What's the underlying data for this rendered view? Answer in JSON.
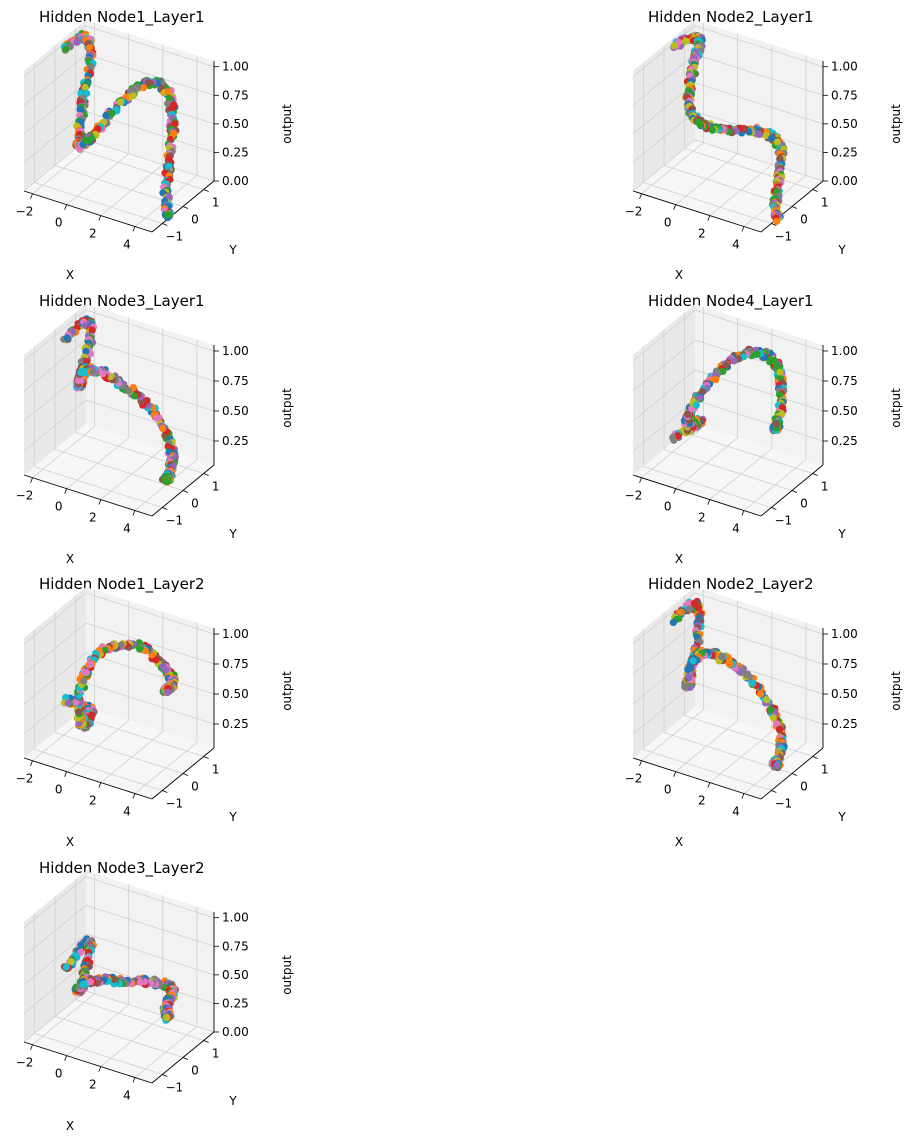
{
  "colors": {
    "pane_left": "#e9e9e9",
    "pane_right": "#f2f2f2",
    "pane_floor": "#f7f7f7",
    "grid": "#cfcfcf",
    "point_palette": [
      "#1f77b4",
      "#ff7f0e",
      "#2ca02c",
      "#d62728",
      "#9467bd",
      "#8c564b",
      "#e377c2",
      "#7f7f7f",
      "#bcbd22",
      "#17becf"
    ]
  },
  "chart_data": [
    {
      "type": "scatter",
      "projection": "3d",
      "title": "Hidden Node1_Layer1",
      "xlabel": "X",
      "ylabel": "Y",
      "zlabel": "output",
      "xticks": [
        "−2",
        "0",
        "2",
        "4"
      ],
      "yticks": [
        "−1",
        "0",
        "1"
      ],
      "zticks": [
        "0.00",
        "0.25",
        "0.50",
        "0.75",
        "1.00"
      ],
      "xlim": [
        -2.5,
        5
      ],
      "ylim": [
        -1.5,
        1.5
      ],
      "zlim": [
        0,
        1.05
      ],
      "points": [
        [
          -2.5,
          0.5,
          0.95
        ],
        [
          -2.0,
          1.0,
          1.0
        ],
        [
          -1.5,
          0.9,
          0.9
        ],
        [
          -1.0,
          0.2,
          0.7
        ],
        [
          -0.5,
          -0.4,
          0.55
        ],
        [
          0.0,
          -0.9,
          0.45
        ],
        [
          0.5,
          -1.1,
          0.5
        ],
        [
          1.0,
          -0.9,
          0.6
        ],
        [
          1.5,
          -0.3,
          0.75
        ],
        [
          2.0,
          0.5,
          0.85
        ],
        [
          2.5,
          1.0,
          0.8
        ],
        [
          3.0,
          1.1,
          0.65
        ],
        [
          3.5,
          0.7,
          0.45
        ],
        [
          4.0,
          0.1,
          0.25
        ],
        [
          4.5,
          -0.4,
          0.1
        ],
        [
          5.0,
          -0.7,
          0.02
        ]
      ]
    },
    {
      "type": "scatter",
      "projection": "3d",
      "title": "Hidden Node2_Layer1",
      "xlabel": "X",
      "ylabel": "Y",
      "zlabel": "output",
      "xticks": [
        "−2",
        "0",
        "2",
        "4"
      ],
      "yticks": [
        "−1",
        "0",
        "1"
      ],
      "zticks": [
        "0.00",
        "0.25",
        "0.50",
        "0.75",
        "1.00"
      ],
      "xlim": [
        -2.5,
        5
      ],
      "ylim": [
        -1.5,
        1.5
      ],
      "zlim": [
        0,
        1.05
      ],
      "points": [
        [
          -2.5,
          0.5,
          0.98
        ],
        [
          -2.0,
          1.0,
          1.0
        ],
        [
          -1.5,
          0.9,
          0.98
        ],
        [
          -1.0,
          0.2,
          0.95
        ],
        [
          -0.5,
          -0.4,
          0.85
        ],
        [
          0.0,
          -0.9,
          0.8
        ],
        [
          0.5,
          -1.1,
          0.75
        ],
        [
          1.0,
          -0.9,
          0.65
        ],
        [
          1.5,
          -0.3,
          0.55
        ],
        [
          2.0,
          0.5,
          0.45
        ],
        [
          2.5,
          1.0,
          0.35
        ],
        [
          3.0,
          1.1,
          0.25
        ],
        [
          3.5,
          0.7,
          0.15
        ],
        [
          4.0,
          0.1,
          0.07
        ],
        [
          4.5,
          -0.4,
          0.02
        ],
        [
          5.0,
          -0.7,
          0.0
        ]
      ]
    },
    {
      "type": "scatter",
      "projection": "3d",
      "title": "Hidden Node3_Layer1",
      "xlabel": "X",
      "ylabel": "Y",
      "zlabel": "output",
      "xticks": [
        "−2",
        "0",
        "2",
        "4"
      ],
      "yticks": [
        "−1",
        "0",
        "1"
      ],
      "zticks": [
        "0.25",
        "0.50",
        "0.75",
        "1.00"
      ],
      "xlim": [
        -2.5,
        5
      ],
      "ylim": [
        -1.5,
        1.5
      ],
      "zlim": [
        0.05,
        1.05
      ],
      "points": [
        [
          -2.5,
          0.5,
          0.9
        ],
        [
          -2.0,
          1.0,
          1.0
        ],
        [
          -1.5,
          0.9,
          0.95
        ],
        [
          -1.0,
          0.2,
          0.8
        ],
        [
          -0.5,
          -0.4,
          0.75
        ],
        [
          0.0,
          -0.9,
          0.85
        ],
        [
          0.5,
          -1.1,
          1.0
        ],
        [
          1.0,
          -0.9,
          1.0
        ],
        [
          1.5,
          -0.3,
          0.85
        ],
        [
          2.0,
          0.5,
          0.6
        ],
        [
          2.5,
          1.0,
          0.35
        ],
        [
          3.0,
          1.1,
          0.15
        ],
        [
          3.5,
          0.7,
          0.1
        ],
        [
          4.0,
          0.1,
          0.12
        ],
        [
          4.5,
          -0.4,
          0.18
        ],
        [
          5.0,
          -0.7,
          0.25
        ]
      ]
    },
    {
      "type": "scatter",
      "projection": "3d",
      "title": "Hidden Node4_Layer1",
      "xlabel": "X",
      "ylabel": "Y",
      "zlabel": "output",
      "xticks": [
        "−2",
        "0",
        "2",
        "4"
      ],
      "yticks": [
        "−1",
        "0",
        "1"
      ],
      "zticks": [
        "0.25",
        "0.50",
        "0.75",
        "1.00"
      ],
      "xlim": [
        -2.5,
        5
      ],
      "ylim": [
        -1.5,
        1.5
      ],
      "zlim": [
        0.05,
        1.05
      ],
      "points": [
        [
          -2.5,
          0.5,
          0.08
        ],
        [
          -2.0,
          1.0,
          0.12
        ],
        [
          -1.5,
          0.9,
          0.2
        ],
        [
          -1.0,
          0.2,
          0.3
        ],
        [
          -0.5,
          -0.4,
          0.42
        ],
        [
          0.0,
          -0.9,
          0.55
        ],
        [
          0.5,
          -1.1,
          0.7
        ],
        [
          1.0,
          -0.9,
          0.85
        ],
        [
          1.5,
          -0.3,
          0.98
        ],
        [
          2.0,
          0.5,
          1.0
        ],
        [
          2.5,
          1.0,
          0.9
        ],
        [
          3.0,
          1.1,
          0.75
        ],
        [
          3.5,
          0.7,
          0.6
        ],
        [
          4.0,
          0.1,
          0.55
        ],
        [
          4.5,
          -0.4,
          0.6
        ],
        [
          5.0,
          -0.7,
          0.7
        ]
      ]
    },
    {
      "type": "scatter",
      "projection": "3d",
      "title": "Hidden Node1_Layer2",
      "xlabel": "X",
      "ylabel": "Y",
      "zlabel": "output",
      "xticks": [
        "−2",
        "0",
        "2",
        "4"
      ],
      "yticks": [
        "−1",
        "0",
        "1"
      ],
      "zticks": [
        "0.25",
        "0.50",
        "0.75",
        "1.00"
      ],
      "xlim": [
        -2.5,
        5
      ],
      "ylim": [
        -1.5,
        1.5
      ],
      "zlim": [
        0.05,
        1.05
      ],
      "points": [
        [
          -2.5,
          0.5,
          0.25
        ],
        [
          -2.0,
          1.0,
          0.15
        ],
        [
          -1.5,
          0.9,
          0.12
        ],
        [
          -1.0,
          0.2,
          0.15
        ],
        [
          -0.5,
          -0.4,
          0.3
        ],
        [
          0.0,
          -0.9,
          0.55
        ],
        [
          0.5,
          -1.1,
          0.8
        ],
        [
          1.0,
          -0.9,
          0.98
        ],
        [
          1.5,
          -0.3,
          1.0
        ],
        [
          2.0,
          0.5,
          0.9
        ],
        [
          2.5,
          1.0,
          0.7
        ],
        [
          3.0,
          1.1,
          0.6
        ],
        [
          3.5,
          0.7,
          0.62
        ],
        [
          4.0,
          0.1,
          0.7
        ],
        [
          4.5,
          -0.4,
          0.78
        ],
        [
          5.0,
          -0.7,
          0.85
        ]
      ]
    },
    {
      "type": "scatter",
      "projection": "3d",
      "title": "Hidden Node2_Layer2",
      "xlabel": "X",
      "ylabel": "Y",
      "zlabel": "output",
      "xticks": [
        "−2",
        "0",
        "2",
        "4"
      ],
      "yticks": [
        "−1",
        "0",
        "1"
      ],
      "zticks": [
        "0.25",
        "0.50",
        "0.75",
        "1.00"
      ],
      "xlim": [
        -2.5,
        5
      ],
      "ylim": [
        -1.5,
        1.5
      ],
      "zlim": [
        0.05,
        1.05
      ],
      "points": [
        [
          -2.5,
          0.5,
          0.92
        ],
        [
          -2.0,
          1.0,
          1.0
        ],
        [
          -1.5,
          0.9,
          0.9
        ],
        [
          -1.0,
          0.2,
          0.72
        ],
        [
          -0.5,
          -0.4,
          0.62
        ],
        [
          0.0,
          -0.9,
          0.7
        ],
        [
          0.5,
          -1.1,
          0.92
        ],
        [
          1.0,
          -0.9,
          1.0
        ],
        [
          1.5,
          -0.3,
          0.88
        ],
        [
          2.0,
          0.5,
          0.62
        ],
        [
          2.5,
          1.0,
          0.35
        ],
        [
          3.0,
          1.1,
          0.15
        ],
        [
          3.5,
          0.7,
          0.08
        ],
        [
          4.0,
          0.1,
          0.1
        ],
        [
          4.5,
          -0.4,
          0.16
        ],
        [
          5.0,
          -0.7,
          0.22
        ]
      ]
    },
    {
      "type": "scatter",
      "projection": "3d",
      "title": "Hidden Node3_Layer2",
      "xlabel": "X",
      "ylabel": "Y",
      "zlabel": "output",
      "xticks": [
        "−2",
        "0",
        "2",
        "4"
      ],
      "yticks": [
        "−1",
        "0",
        "1"
      ],
      "zticks": [
        "0.00",
        "0.25",
        "0.50",
        "0.75",
        "1.00"
      ],
      "xlim": [
        -2.5,
        5
      ],
      "ylim": [
        -1.5,
        1.5
      ],
      "zlim": [
        0,
        1.05
      ],
      "points": [
        [
          -2.5,
          0.5,
          0.35
        ],
        [
          -2.0,
          1.0,
          0.5
        ],
        [
          -1.5,
          0.9,
          0.55
        ],
        [
          -1.0,
          0.2,
          0.45
        ],
        [
          -0.5,
          -0.4,
          0.4
        ],
        [
          0.0,
          -0.9,
          0.5
        ],
        [
          0.5,
          -1.1,
          0.6
        ],
        [
          1.0,
          -0.9,
          0.62
        ],
        [
          1.5,
          -0.3,
          0.55
        ],
        [
          2.0,
          0.5,
          0.45
        ],
        [
          2.5,
          1.0,
          0.38
        ],
        [
          3.0,
          1.1,
          0.35
        ],
        [
          3.5,
          0.7,
          0.38
        ],
        [
          4.0,
          0.1,
          0.42
        ],
        [
          4.5,
          -0.4,
          0.45
        ],
        [
          5.0,
          -0.7,
          0.45
        ]
      ]
    }
  ]
}
